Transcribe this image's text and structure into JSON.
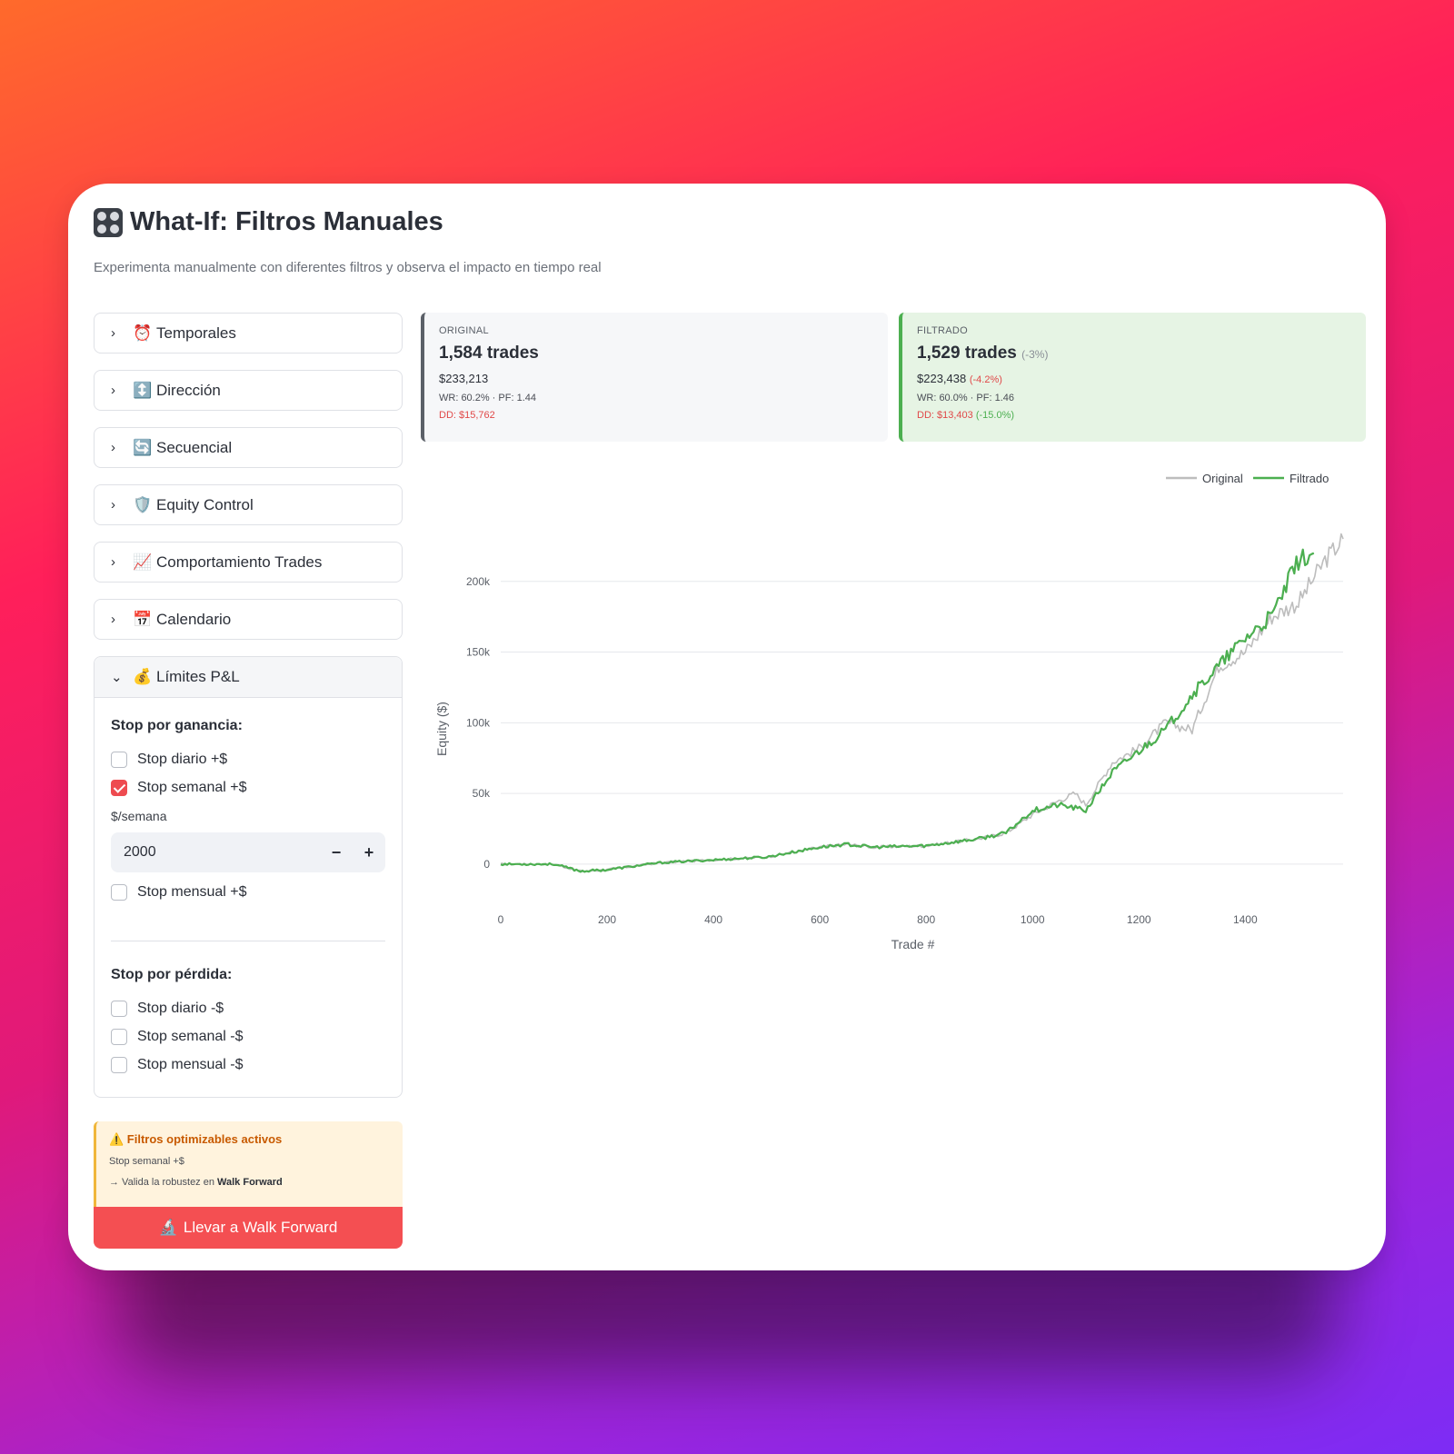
{
  "header": {
    "title": "What-If: Filtros Manuales",
    "subtitle": "Experimenta manualmente con diferentes filtros y observa el impacto en tiempo real"
  },
  "sidebar": {
    "expanders": [
      {
        "emoji": "⏰",
        "label": "Temporales"
      },
      {
        "emoji": "↕️",
        "label": "Dirección"
      },
      {
        "emoji": "🔄",
        "label": "Secuencial"
      },
      {
        "emoji": "🛡️",
        "label": "Equity Control"
      },
      {
        "emoji": "📈",
        "label": "Comportamiento Trades"
      },
      {
        "emoji": "📅",
        "label": "Calendario"
      }
    ],
    "open_expander": {
      "emoji": "💰",
      "label": "Límites P&L",
      "gain_title": "Stop por ganancia:",
      "gain_daily": "Stop diario +$",
      "gain_weekly": "Stop semanal +$",
      "gain_weekly_checked": true,
      "weekly_field_label": "$/semana",
      "weekly_value": "2000",
      "minus": "−",
      "plus": "+",
      "gain_monthly": "Stop mensual +$",
      "loss_title": "Stop por pérdida:",
      "loss_daily": "Stop diario -$",
      "loss_weekly": "Stop semanal -$",
      "loss_monthly": "Stop mensual -$"
    }
  },
  "warning": {
    "title": "⚠️ Filtros optimizables activos",
    "line1": "Stop semanal +$",
    "line2_prefix": "→ Valida la robustez en ",
    "line2_bold": "Walk Forward"
  },
  "walk_forward_button": {
    "emoji": "🔬",
    "label": "Llevar a Walk Forward"
  },
  "cards": {
    "original": {
      "label": "ORIGINAL",
      "trades": "1,584 trades",
      "money": "$233,213",
      "stats": "WR: 60.2% · PF: 1.44",
      "dd": "DD: $15,762"
    },
    "filtrado": {
      "label": "FILTRADO",
      "trades": "1,529 trades",
      "trades_pct": "(-3%)",
      "money": "$223,438",
      "money_pct": "(-4.2%)",
      "stats": "WR: 60.0% · PF: 1.46",
      "dd": "DD: $13,403",
      "dd_pct": "(-15.0%)"
    }
  },
  "colors": {
    "original_line": "#bdbdbd",
    "filtrado_line": "#4caf50",
    "accent_red": "#f44f52"
  },
  "chart_data": {
    "type": "line",
    "xlabel": "Trade #",
    "ylabel": "Equity ($)",
    "xlim": [
      0,
      1584
    ],
    "ylim": [
      -20000,
      250000
    ],
    "x_ticks": [
      0,
      200,
      400,
      600,
      800,
      1000,
      1200,
      1400
    ],
    "y_ticks": [
      0,
      50000,
      100000,
      150000,
      200000
    ],
    "y_tick_labels": [
      "0",
      "50k",
      "100k",
      "150k",
      "200k"
    ],
    "legend_position": "top-right",
    "series": [
      {
        "name": "Original",
        "color": "#bdbdbd",
        "x": [
          0,
          100,
          150,
          200,
          300,
          400,
          500,
          600,
          650,
          700,
          800,
          900,
          950,
          1000,
          1050,
          1080,
          1100,
          1150,
          1200,
          1250,
          1300,
          1350,
          1400,
          1450,
          1500,
          1550,
          1584
        ],
        "y": [
          0,
          0,
          -5000,
          -4000,
          1000,
          3000,
          5000,
          12000,
          14000,
          12000,
          13000,
          18000,
          22000,
          35000,
          45000,
          50000,
          42000,
          72000,
          82000,
          100000,
          95000,
          140000,
          150000,
          175000,
          185000,
          215000,
          230000
        ]
      },
      {
        "name": "Filtrado",
        "color": "#4caf50",
        "x": [
          0,
          100,
          150,
          200,
          300,
          400,
          500,
          600,
          650,
          700,
          800,
          900,
          950,
          1000,
          1050,
          1100,
          1150,
          1200,
          1250,
          1300,
          1350,
          1400,
          1450,
          1500,
          1529
        ],
        "y": [
          0,
          0,
          -5000,
          -4000,
          1000,
          3000,
          5000,
          12000,
          14000,
          12000,
          13000,
          18000,
          22000,
          38000,
          42000,
          38000,
          65000,
          80000,
          95000,
          120000,
          140000,
          160000,
          175000,
          215000,
          220000
        ]
      }
    ]
  }
}
